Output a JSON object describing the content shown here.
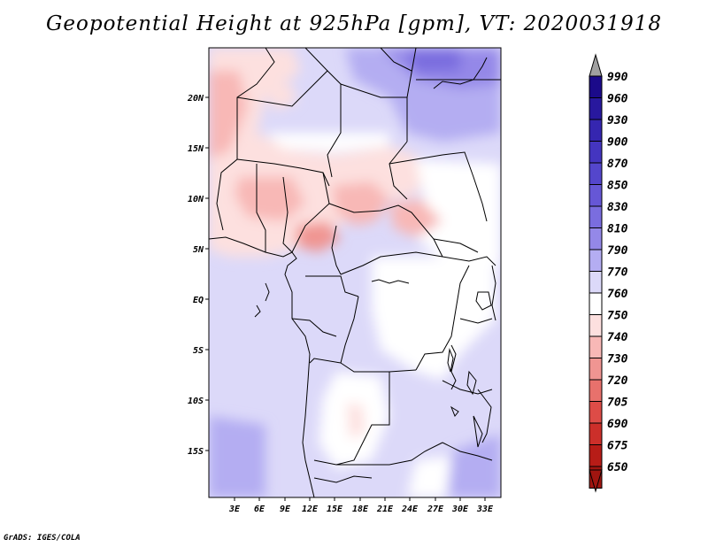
{
  "title": "Geopotential Height at 925hPa [gpm], VT: 2020031918",
  "credit": "GrADS: IGES/COLA",
  "map": {
    "region": "Central Africa",
    "lat_labels": [
      "20N",
      "15N",
      "10N",
      "5N",
      "EQ",
      "5S",
      "10S",
      "15S"
    ],
    "lon_labels": [
      "3E",
      "6E",
      "9E",
      "12E",
      "15E",
      "18E",
      "21E",
      "24E",
      "27E",
      "30E",
      "33E"
    ]
  },
  "colorbar": {
    "levels": [
      "990",
      "960",
      "930",
      "900",
      "870",
      "850",
      "830",
      "810",
      "790",
      "770",
      "760",
      "750",
      "740",
      "730",
      "720",
      "705",
      "690",
      "675",
      "650"
    ],
    "colors": [
      "#1b0a8a",
      "#28189e",
      "#3526b0",
      "#4435c0",
      "#5446cc",
      "#6657d6",
      "#7a6ddf",
      "#9488e8",
      "#b4adf2",
      "#dcd9f9",
      "#ffffff",
      "#fde0df",
      "#f8b8b6",
      "#f09592",
      "#e8716c",
      "#dd4c47",
      "#cc2f2a",
      "#b71c17",
      "#a01510"
    ],
    "top_arrow_color": "#a0a0a0",
    "bottom_arrow_color": "#a01510"
  }
}
